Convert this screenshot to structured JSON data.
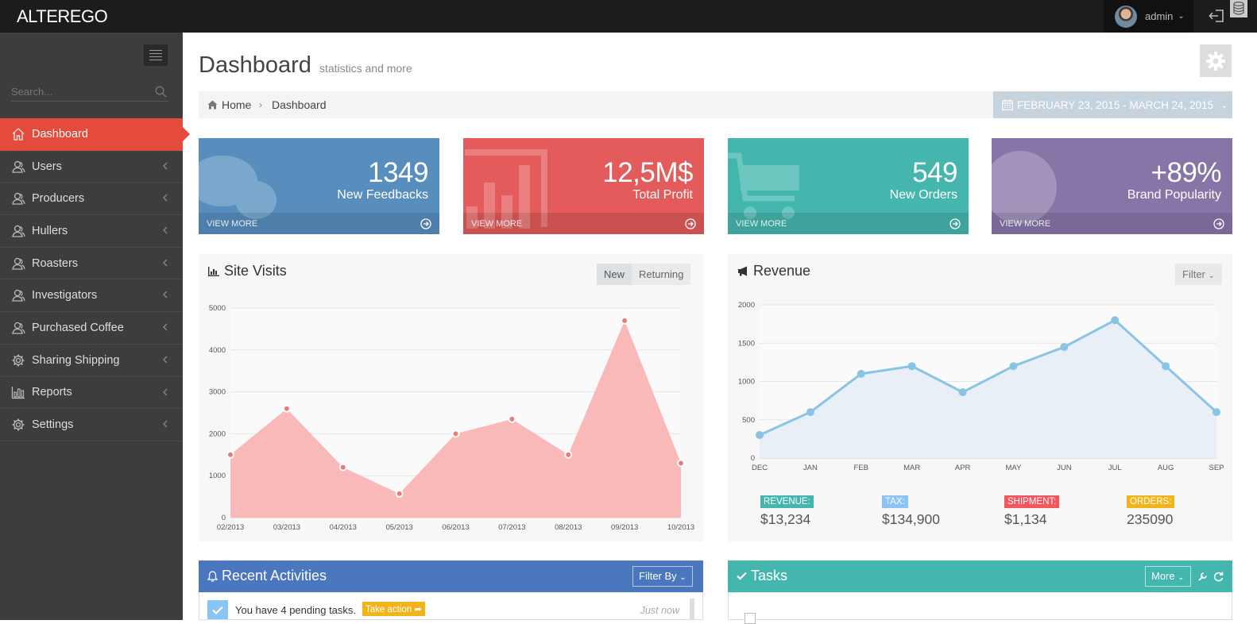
{
  "app": {
    "brand": "ALTEREGO",
    "user": "admin"
  },
  "sidebar": {
    "search_placeholder": "Search...",
    "items": [
      {
        "label": "Dashboard",
        "icon": "home-icon",
        "active": true
      },
      {
        "label": "Users",
        "icon": "user-icon"
      },
      {
        "label": "Producers",
        "icon": "user-icon"
      },
      {
        "label": "Hullers",
        "icon": "user-icon"
      },
      {
        "label": "Roasters",
        "icon": "user-icon"
      },
      {
        "label": "Investigators",
        "icon": "user-icon"
      },
      {
        "label": "Purchased Coffee",
        "icon": "user-icon"
      },
      {
        "label": "Sharing Shipping",
        "icon": "gear-icon"
      },
      {
        "label": "Reports",
        "icon": "bar-chart-icon"
      },
      {
        "label": "Settings",
        "icon": "gear-icon"
      }
    ]
  },
  "page": {
    "title": "Dashboard",
    "subtitle": "statistics and more",
    "breadcrumb": {
      "home": "Home",
      "current": "Dashboard"
    },
    "date_range": "FEBRUARY 23, 2015 - MARCH 24, 2015"
  },
  "stats": [
    {
      "value": "1349",
      "label": "New Feedbacks",
      "footer": "VIEW MORE",
      "color": "#578ebe",
      "icon": "comments-icon"
    },
    {
      "value": "12,5M$",
      "label": "Total Profit",
      "footer": "VIEW MORE",
      "color": "#e35b5a",
      "icon": "bar-chart-icon"
    },
    {
      "value": "549",
      "label": "New Orders",
      "footer": "VIEW MORE",
      "color": "#44b6ae",
      "icon": "shopping-cart-icon"
    },
    {
      "value": "+89%",
      "label": "Brand Popularity",
      "footer": "VIEW MORE",
      "color": "#8775a7",
      "icon": "globe-icon"
    }
  ],
  "site_visits": {
    "title": "Site Visits",
    "tabs": [
      "New",
      "Returning"
    ],
    "active_tab": "New"
  },
  "revenue": {
    "title": "Revenue",
    "filter": "Filter",
    "summary": [
      {
        "tag": "REVENUE:",
        "value": "$13,234",
        "color": "#44b6ae"
      },
      {
        "tag": "TAX:",
        "value": "$134,900",
        "color": "#89c4f4"
      },
      {
        "tag": "SHIPMENT:",
        "value": "$1,134",
        "color": "#f3565d"
      },
      {
        "tag": "ORDERS:",
        "value": "235090",
        "color": "#f2b31b"
      }
    ]
  },
  "recent_activities": {
    "title": "Recent Activities",
    "filter": "Filter By",
    "item_text": "You have 4 pending tasks.",
    "item_action": "Take action",
    "item_time": "Just now"
  },
  "tasks": {
    "title": "Tasks",
    "more": "More"
  },
  "chart_data": [
    {
      "type": "area",
      "title": "Site Visits",
      "x": [
        "02/2013",
        "03/2013",
        "04/2013",
        "05/2013",
        "06/2013",
        "07/2013",
        "08/2013",
        "09/2013",
        "10/2013"
      ],
      "series": [
        {
          "values": [
            1500,
            2600,
            1200,
            570,
            2000,
            2350,
            1500,
            4700,
            1300
          ]
        }
      ],
      "ylim": [
        0,
        5000
      ],
      "yticks": [
        0,
        1000,
        2000,
        3000,
        4000,
        5000
      ],
      "color": "#f9b9b8",
      "point_color": "#f0787a",
      "grid": true
    },
    {
      "type": "area",
      "title": "Revenue",
      "x": [
        "DEC",
        "JAN",
        "FEB",
        "MAR",
        "APR",
        "MAY",
        "JUN",
        "JUL",
        "AUG",
        "SEP"
      ],
      "series": [
        {
          "values": [
            300,
            600,
            1100,
            1200,
            860,
            1200,
            1450,
            1800,
            1200,
            600
          ]
        }
      ],
      "ylim": [
        0,
        2000
      ],
      "yticks": [
        0,
        500,
        1000,
        1500,
        2000
      ],
      "color": "#89c4e4",
      "fill": "#e9eff7",
      "grid": true
    }
  ]
}
